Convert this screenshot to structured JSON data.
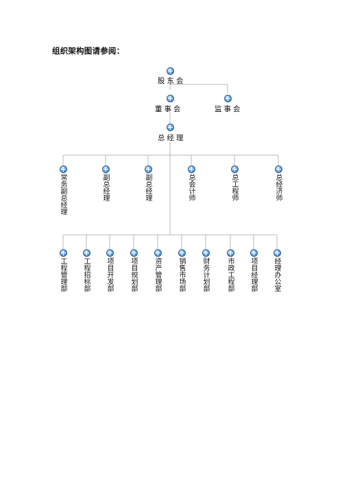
{
  "heading": "组织架构图请参阅：",
  "top": {
    "shareholders": "股东会",
    "board": "董事会",
    "supervisors": "监事会",
    "gm": "总经理"
  },
  "executives": [
    "常务副总经理",
    "副总经理",
    "副总经理",
    "总会计师",
    "总工程师",
    "总经济师"
  ],
  "departments": [
    "工程管理部",
    "工程招标部",
    "项目开发部",
    "项目规划部",
    "资产管理部",
    "销售市场部",
    "财务计划部",
    "市政工程部",
    "项目经理部",
    "经理办公室"
  ]
}
